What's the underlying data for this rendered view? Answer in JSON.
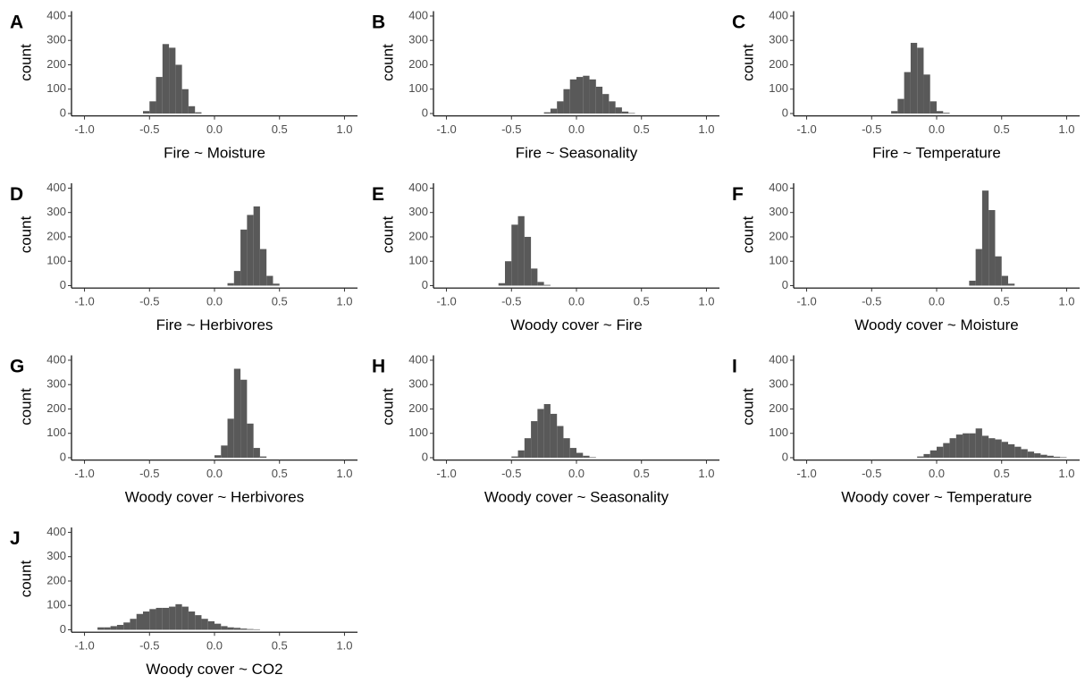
{
  "chart_data": [
    {
      "type": "histogram",
      "panel": "A",
      "xlabel": "Fire ~ Moisture",
      "ylabel": "count",
      "color": "#595959",
      "bins": [
        -0.55,
        -0.5,
        -0.45,
        -0.4,
        -0.35,
        -0.3,
        -0.25,
        -0.2,
        -0.15,
        -0.1
      ],
      "values": [
        10,
        50,
        150,
        285,
        270,
        200,
        100,
        30,
        5
      ],
      "xlim": [
        -1.1,
        1.1
      ],
      "ylim": [
        -10,
        420
      ],
      "xticks": [
        {
          "value": -1,
          "label": "-1.0"
        },
        -0.5,
        {
          "value": 0,
          "label": "0.0"
        },
        0.5,
        {
          "value": 1,
          "label": "1.0"
        }
      ],
      "yticks": [
        0,
        100,
        200,
        300,
        400
      ]
    },
    {
      "type": "histogram",
      "panel": "B",
      "xlabel": "Fire ~ Seasonality",
      "ylabel": "count",
      "color": "#595959",
      "bins": [
        -0.25,
        -0.2,
        -0.15,
        -0.1,
        -0.05,
        0,
        0.05,
        0.1,
        0.15,
        0.2,
        0.25,
        0.3,
        0.35,
        0.4,
        0.45
      ],
      "values": [
        5,
        20,
        50,
        100,
        140,
        150,
        155,
        140,
        110,
        80,
        50,
        25,
        8,
        2
      ],
      "xlim": [
        -1.1,
        1.1
      ],
      "ylim": [
        -10,
        420
      ],
      "xticks": [
        {
          "value": -1,
          "label": "-1.0"
        },
        -0.5,
        {
          "value": 0,
          "label": "0.0"
        },
        0.5,
        {
          "value": 1,
          "label": "1.0"
        }
      ],
      "yticks": [
        0,
        100,
        200,
        300,
        400
      ]
    },
    {
      "type": "histogram",
      "panel": "C",
      "xlabel": "Fire ~ Temperature",
      "ylabel": "count",
      "color": "#595959",
      "bins": [
        -0.35,
        -0.3,
        -0.25,
        -0.2,
        -0.15,
        -0.1,
        -0.05,
        0,
        0.05,
        0.1
      ],
      "values": [
        10,
        60,
        170,
        290,
        270,
        160,
        50,
        10,
        3
      ],
      "xlim": [
        -1.1,
        1.1
      ],
      "ylim": [
        -10,
        420
      ],
      "xticks": [
        {
          "value": -1,
          "label": "-1.0"
        },
        -0.5,
        {
          "value": 0,
          "label": "0.0"
        },
        0.5,
        {
          "value": 1,
          "label": "1.0"
        }
      ],
      "yticks": [
        0,
        100,
        200,
        300,
        400
      ]
    },
    {
      "type": "histogram",
      "panel": "D",
      "xlabel": "Fire ~ Herbivores",
      "ylabel": "count",
      "color": "#595959",
      "bins": [
        0.1,
        0.15,
        0.2,
        0.25,
        0.3,
        0.35,
        0.4,
        0.45,
        0.5
      ],
      "values": [
        10,
        60,
        230,
        290,
        325,
        150,
        40,
        8
      ],
      "xlim": [
        -1.1,
        1.1
      ],
      "ylim": [
        -10,
        420
      ],
      "xticks": [
        {
          "value": -1,
          "label": "-1.0"
        },
        -0.5,
        {
          "value": 0,
          "label": "0.0"
        },
        0.5,
        {
          "value": 1,
          "label": "1.0"
        }
      ],
      "yticks": [
        0,
        100,
        200,
        300,
        400
      ]
    },
    {
      "type": "histogram",
      "panel": "E",
      "xlabel": "Woody cover ~ Fire",
      "ylabel": "count",
      "color": "#595959",
      "bins": [
        -0.6,
        -0.55,
        -0.5,
        -0.45,
        -0.4,
        -0.35,
        -0.3,
        -0.25,
        -0.2
      ],
      "values": [
        10,
        100,
        250,
        285,
        200,
        70,
        15,
        3
      ],
      "xlim": [
        -1.1,
        1.1
      ],
      "ylim": [
        -10,
        420
      ],
      "xticks": [
        {
          "value": -1,
          "label": "-1.0"
        },
        -0.5,
        {
          "value": 0,
          "label": "0.0"
        },
        0.5,
        {
          "value": 1,
          "label": "1.0"
        }
      ],
      "yticks": [
        0,
        100,
        200,
        300,
        400
      ]
    },
    {
      "type": "histogram",
      "panel": "F",
      "xlabel": "Woody cover ~ Moisture",
      "ylabel": "count",
      "color": "#595959",
      "bins": [
        0.25,
        0.3,
        0.35,
        0.4,
        0.45,
        0.5,
        0.55,
        0.6
      ],
      "values": [
        20,
        150,
        390,
        310,
        120,
        40,
        8
      ],
      "xlim": [
        -1.1,
        1.1
      ],
      "ylim": [
        -10,
        420
      ],
      "xticks": [
        {
          "value": -1,
          "label": "-1.0"
        },
        -0.5,
        {
          "value": 0,
          "label": "0.0"
        },
        0.5,
        {
          "value": 1,
          "label": "1.0"
        }
      ],
      "yticks": [
        0,
        100,
        200,
        300,
        400
      ]
    },
    {
      "type": "histogram",
      "panel": "G",
      "xlabel": "Woody cover ~ Herbivores",
      "ylabel": "count",
      "color": "#595959",
      "bins": [
        0,
        0.05,
        0.1,
        0.15,
        0.2,
        0.25,
        0.3,
        0.35,
        0.4
      ],
      "values": [
        10,
        50,
        160,
        365,
        320,
        140,
        40,
        5
      ],
      "xlim": [
        -1.1,
        1.1
      ],
      "ylim": [
        -10,
        420
      ],
      "xticks": [
        {
          "value": -1,
          "label": "-1.0"
        },
        -0.5,
        {
          "value": 0,
          "label": "0.0"
        },
        0.5,
        {
          "value": 1,
          "label": "1.0"
        }
      ],
      "yticks": [
        0,
        100,
        200,
        300,
        400
      ]
    },
    {
      "type": "histogram",
      "panel": "H",
      "xlabel": "Woody cover ~ Seasonality",
      "ylabel": "count",
      "color": "#595959",
      "bins": [
        -0.5,
        -0.45,
        -0.4,
        -0.35,
        -0.3,
        -0.25,
        -0.2,
        -0.15,
        -0.1,
        -0.05,
        0,
        0.05,
        0.1,
        0.15
      ],
      "values": [
        5,
        30,
        80,
        150,
        200,
        220,
        180,
        130,
        80,
        40,
        20,
        8,
        2
      ],
      "xlim": [
        -1.1,
        1.1
      ],
      "ylim": [
        -10,
        420
      ],
      "xticks": [
        {
          "value": -1,
          "label": "-1.0"
        },
        -0.5,
        {
          "value": 0,
          "label": "0.0"
        },
        0.5,
        {
          "value": 1,
          "label": "1.0"
        }
      ],
      "yticks": [
        0,
        100,
        200,
        300,
        400
      ]
    },
    {
      "type": "histogram",
      "panel": "I",
      "xlabel": "Woody cover ~ Temperature",
      "ylabel": "count",
      "color": "#595959",
      "bins": [
        -0.15,
        -0.1,
        -0.05,
        0,
        0.05,
        0.1,
        0.15,
        0.2,
        0.25,
        0.3,
        0.35,
        0.4,
        0.45,
        0.5,
        0.55,
        0.6,
        0.65,
        0.7,
        0.75,
        0.8,
        0.85,
        0.9,
        0.95,
        1.0
      ],
      "values": [
        5,
        15,
        30,
        45,
        60,
        80,
        95,
        100,
        100,
        120,
        90,
        80,
        75,
        65,
        55,
        45,
        35,
        25,
        18,
        12,
        8,
        4,
        2
      ],
      "xlim": [
        -1.1,
        1.1
      ],
      "ylim": [
        -10,
        420
      ],
      "xticks": [
        {
          "value": -1,
          "label": "-1.0"
        },
        -0.5,
        {
          "value": 0,
          "label": "0.0"
        },
        0.5,
        {
          "value": 1,
          "label": "1.0"
        }
      ],
      "yticks": [
        0,
        100,
        200,
        300,
        400
      ]
    },
    {
      "type": "histogram",
      "panel": "J",
      "xlabel": "Woody cover ~ CO2",
      "ylabel": "count",
      "color": "#595959",
      "bins": [
        -0.9,
        -0.85,
        -0.8,
        -0.75,
        -0.7,
        -0.65,
        -0.6,
        -0.55,
        -0.5,
        -0.45,
        -0.4,
        -0.35,
        -0.3,
        -0.25,
        -0.2,
        -0.15,
        -0.1,
        -0.05,
        0,
        0.05,
        0.1,
        0.15,
        0.2,
        0.25,
        0.3,
        0.35
      ],
      "values": [
        10,
        10,
        15,
        20,
        30,
        45,
        65,
        75,
        85,
        90,
        90,
        95,
        105,
        95,
        75,
        60,
        45,
        35,
        25,
        15,
        10,
        8,
        5,
        3,
        2
      ],
      "xlim": [
        -1.1,
        1.1
      ],
      "ylim": [
        -10,
        420
      ],
      "xticks": [
        {
          "value": -1,
          "label": "-1.0"
        },
        -0.5,
        {
          "value": 0,
          "label": "0.0"
        },
        0.5,
        {
          "value": 1,
          "label": "1.0"
        }
      ],
      "yticks": [
        0,
        100,
        200,
        300,
        400
      ]
    }
  ]
}
